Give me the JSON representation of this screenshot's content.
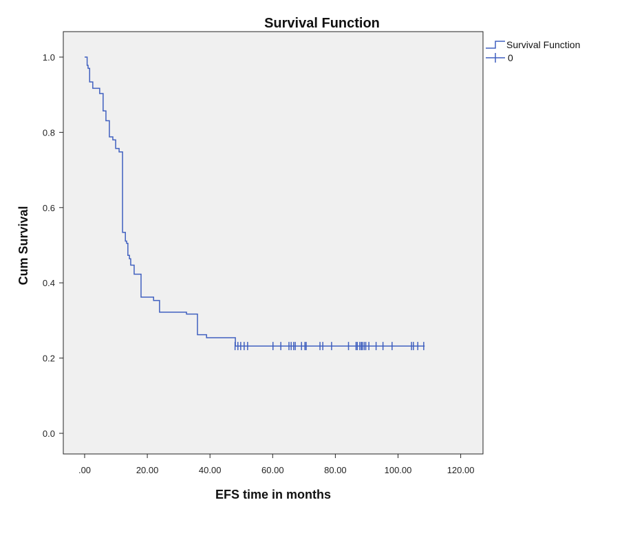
{
  "chart_data": {
    "type": "line",
    "subtype": "kaplan-meier-step",
    "title": "Survival Function",
    "xlabel": "EFS time in months",
    "ylabel": "Cum Survival",
    "xlim": [
      -7,
      127
    ],
    "ylim": [
      -0.055,
      1.07
    ],
    "xticks": [
      0,
      20,
      40,
      60,
      80,
      100,
      120
    ],
    "xtick_labels": [
      ".00",
      "20.00",
      "40.00",
      "60.00",
      "80.00",
      "100.00",
      "120.00"
    ],
    "yticks": [
      0,
      0.2,
      0.4,
      0.6,
      0.8,
      1.0
    ],
    "ytick_labels": [
      "0.0",
      "0.2",
      "0.4",
      "0.6",
      "0.8",
      "1.0"
    ],
    "grid": false,
    "legend": {
      "placement": "top-right-outside",
      "entries": [
        "Survival Function",
        "0"
      ]
    },
    "series": [
      {
        "name": "Survival Function",
        "color": "#3f5fbf",
        "steps": [
          [
            0,
            1.0
          ],
          [
            0.8,
            0.978
          ],
          [
            1.1,
            0.97
          ],
          [
            1.6,
            0.934
          ],
          [
            2.6,
            0.917
          ],
          [
            4.8,
            0.903
          ],
          [
            5.9,
            0.857
          ],
          [
            6.8,
            0.831
          ],
          [
            7.9,
            0.788
          ],
          [
            9.0,
            0.78
          ],
          [
            9.9,
            0.757
          ],
          [
            11.0,
            0.748
          ],
          [
            12.1,
            0.534
          ],
          [
            13.0,
            0.511
          ],
          [
            13.4,
            0.505
          ],
          [
            13.8,
            0.473
          ],
          [
            14.3,
            0.464
          ],
          [
            14.7,
            0.447
          ],
          [
            15.8,
            0.423
          ],
          [
            18.0,
            0.362
          ],
          [
            22.0,
            0.353
          ],
          [
            23.9,
            0.322
          ],
          [
            32.5,
            0.317
          ],
          [
            36.0,
            0.262
          ],
          [
            38.9,
            0.254
          ],
          [
            48.1,
            0.232
          ]
        ],
        "end_time": 108.5,
        "censored_label": "0",
        "censored_times": [
          48.0,
          48.9,
          49.8,
          50.9,
          52.0,
          60.1,
          62.6,
          65.2,
          65.9,
          66.7,
          67.2,
          69.2,
          70.3,
          70.7,
          75.1,
          76.0,
          78.8,
          84.2,
          86.6,
          87.0,
          87.8,
          88.3,
          88.6,
          89.2,
          89.7,
          90.7,
          93.0,
          95.2,
          98.1,
          104.3,
          104.9,
          106.3,
          108.2
        ]
      }
    ]
  }
}
